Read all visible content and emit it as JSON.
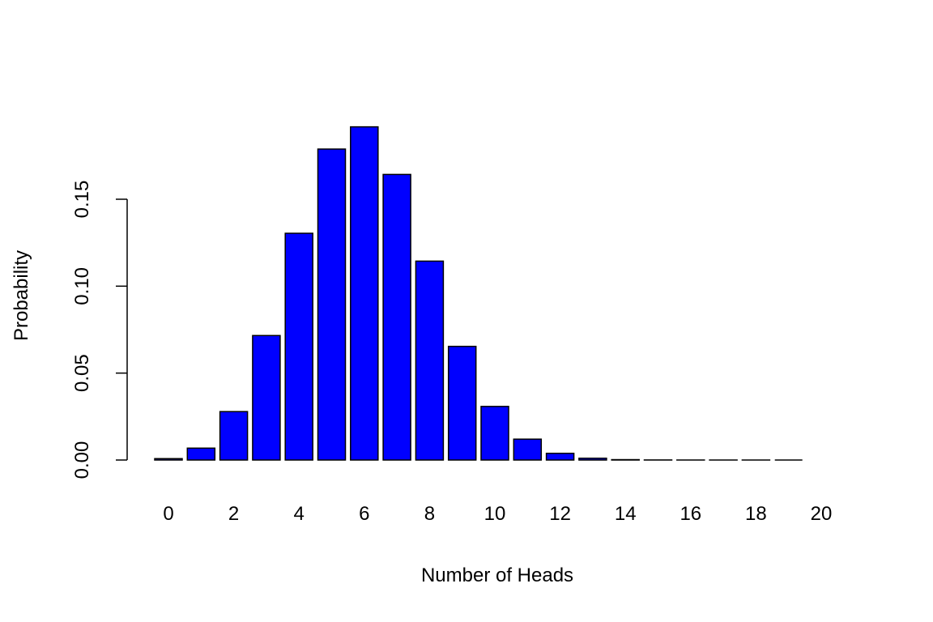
{
  "chart_data": {
    "type": "bar",
    "title": "",
    "xlabel": "Number of Heads",
    "ylabel": "Probability",
    "categories": [
      "0",
      "1",
      "2",
      "3",
      "4",
      "5",
      "6",
      "7",
      "8",
      "9",
      "10",
      "11",
      "12",
      "13",
      "14",
      "15",
      "16",
      "17",
      "18",
      "19",
      "20"
    ],
    "x_tick_labels_shown": [
      "0",
      "2",
      "4",
      "6",
      "8",
      "10",
      "12",
      "14",
      "16",
      "18",
      "20"
    ],
    "values": [
      0.000798,
      0.00684,
      0.02785,
      0.0716,
      0.13042,
      0.17886,
      0.19164,
      0.16426,
      0.1144,
      0.06537,
      0.03082,
      0.01201,
      0.00386,
      0.00102,
      0.000218,
      3.74e-05,
      5e-06,
      5e-07,
      4e-08,
      2e-09,
      3e-11
    ],
    "y_ticks": [
      "0.00",
      "0.05",
      "0.10",
      "0.15"
    ],
    "y_tick_values": [
      0,
      0.05,
      0.1,
      0.15
    ],
    "ylim": [
      0,
      0.2
    ],
    "grid": false,
    "bar_color": "#0000ff",
    "bar_border_color": "#000000"
  }
}
